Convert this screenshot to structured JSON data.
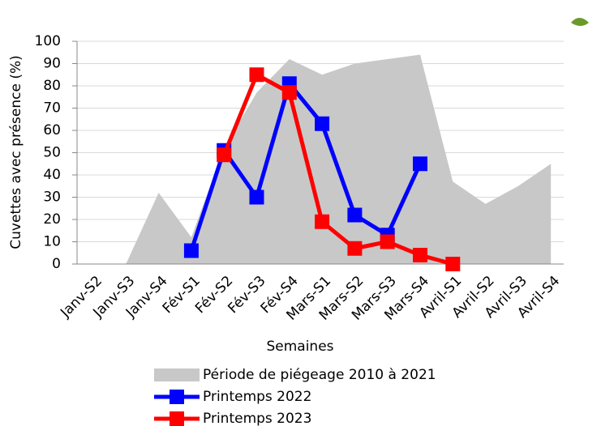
{
  "chart_data": {
    "type": "line",
    "y_label": "Cuvettes avec présence (%)",
    "x_label": "Semaines",
    "categories": [
      "Janv-S2",
      "Janv-S3",
      "Janv-S4",
      "Fév-S1",
      "Fév-S2",
      "Fév-S3",
      "Fév-S4",
      "Mars-S1",
      "Mars-S2",
      "Mars-S3",
      "Mars-S4",
      "Avril-S1",
      "Avril-S2",
      "Avril-S3",
      "Avril-S4"
    ],
    "series": [
      {
        "name": "Période de piégeage 2010 à 2021",
        "kind": "area",
        "color": "#c8c8c8",
        "values": [
          0,
          0,
          32,
          12,
          52,
          77,
          92,
          85,
          90,
          92,
          94,
          37,
          27,
          35,
          45
        ]
      },
      {
        "name": "Printemps 2022",
        "kind": "line",
        "color": "#0000ff",
        "values": [
          null,
          null,
          null,
          6,
          51,
          30,
          81,
          63,
          22,
          13,
          45,
          null,
          null,
          null,
          null
        ]
      },
      {
        "name": "Printemps 2023",
        "kind": "line",
        "color": "#ff0000",
        "values": [
          null,
          null,
          null,
          null,
          49,
          85,
          77,
          19,
          7,
          10,
          4,
          0,
          null,
          null,
          null
        ]
      }
    ],
    "ylim": [
      0,
      100
    ],
    "yticks": [
      0,
      10,
      20,
      30,
      40,
      50,
      60,
      70,
      80,
      90,
      100
    ],
    "grid": true
  }
}
